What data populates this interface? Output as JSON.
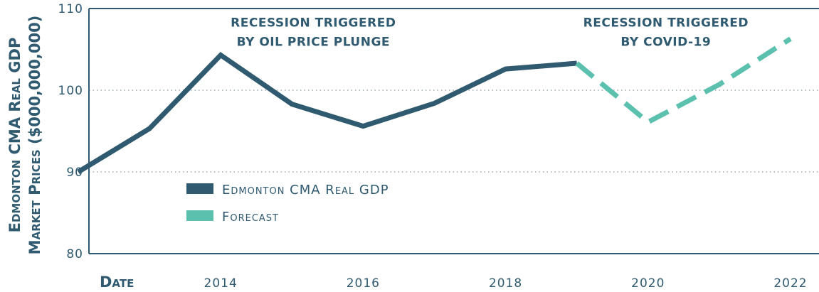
{
  "chart_data": {
    "type": "line",
    "ylabel_lines": [
      "Edmonton CMA Real GDP",
      "Market Prices ($000,000,000)"
    ],
    "xlabel": "Date",
    "ylim": [
      80,
      110
    ],
    "xlim": [
      2012.15,
      2022.4
    ],
    "y_ticks": [
      80,
      90,
      100,
      110
    ],
    "x_ticks": [
      2014,
      2016,
      2018,
      2020,
      2022
    ],
    "grid": "dotted horizontal at 90 and 100",
    "legend_position": "lower-left",
    "series": [
      {
        "name": "Edmonton CMA Real GDP",
        "color": "#2f5a70",
        "style": "solid",
        "x": [
          2012,
          2013,
          2014,
          2015,
          2016,
          2017,
          2018,
          2019
        ],
        "y": [
          90.0,
          95.3,
          104.3,
          98.3,
          95.6,
          98.4,
          102.6,
          103.3
        ]
      },
      {
        "name": "Forecast",
        "color": "#5bc0ae",
        "style": "dashed",
        "x": [
          2019,
          2020,
          2021,
          2022
        ],
        "y": [
          103.3,
          96.1,
          100.7,
          106.3
        ]
      }
    ],
    "annotations": [
      {
        "lines": [
          "RECESSION TRIGGERED",
          "BY OIL PRICE PLUNGE"
        ],
        "x": 2015.3,
        "y": 107.8
      },
      {
        "lines": [
          "RECESSION TRIGGERED",
          "BY COVID-19"
        ],
        "x": 2020.25,
        "y": 107.8
      }
    ]
  }
}
